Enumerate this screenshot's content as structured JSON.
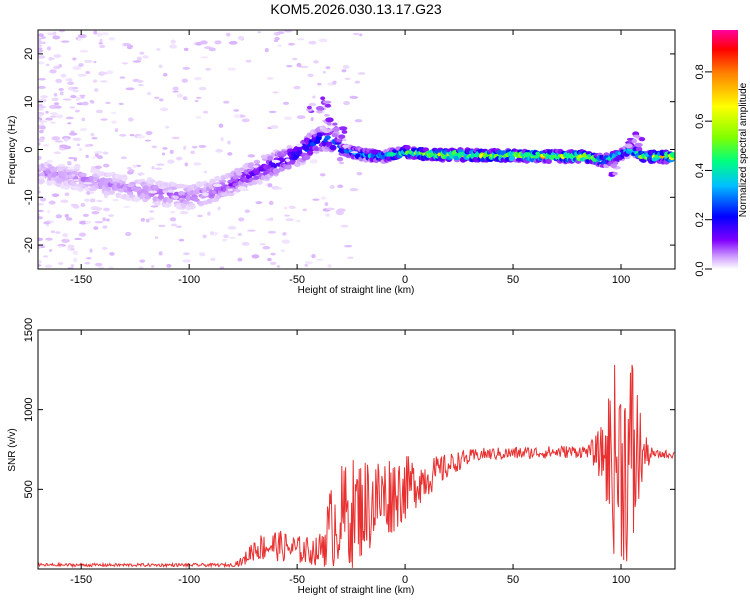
{
  "title": "KOM5.2026.030.13.17.G23",
  "chart_data": [
    {
      "type": "heatmap",
      "name": "spectrogram",
      "xlabel": "Height of straight line (km)",
      "ylabel": "Frequency (Hz)",
      "xlim": [
        -170,
        125
      ],
      "ylim": [
        -25,
        25
      ],
      "xticks": [
        -150,
        -100,
        -50,
        0,
        50,
        100
      ],
      "yticks": [
        -20,
        -10,
        0,
        10,
        20
      ],
      "colorbar": {
        "label": "Normalized spectral amplitude",
        "range": [
          0,
          0.97
        ],
        "ticks": [
          0.0,
          0.2,
          0.4,
          0.6,
          0.8
        ],
        "colors": [
          "#ffffff",
          "#d0a0ff",
          "#8000ff",
          "#0000ff",
          "#00c0ff",
          "#00ff80",
          "#80ff00",
          "#ffff00",
          "#ff8000",
          "#ff0000",
          "#ff00a0"
        ]
      },
      "ridge": [
        {
          "x": -165,
          "f": -5,
          "a": 0.12
        },
        {
          "x": -150,
          "f": -6,
          "a": 0.12
        },
        {
          "x": -130,
          "f": -8,
          "a": 0.12
        },
        {
          "x": -115,
          "f": -9,
          "a": 0.15
        },
        {
          "x": -100,
          "f": -10,
          "a": 0.15
        },
        {
          "x": -90,
          "f": -9,
          "a": 0.15
        },
        {
          "x": -80,
          "f": -7,
          "a": 0.2
        },
        {
          "x": -70,
          "f": -5,
          "a": 0.22
        },
        {
          "x": -60,
          "f": -3,
          "a": 0.25
        },
        {
          "x": -50,
          "f": -1,
          "a": 0.3
        },
        {
          "x": -40,
          "f": 2,
          "a": 0.35
        },
        {
          "x": -35,
          "f": 2.5,
          "a": 0.35
        },
        {
          "x": -30,
          "f": 0,
          "a": 0.4
        },
        {
          "x": -20,
          "f": -1,
          "a": 0.45
        },
        {
          "x": -10,
          "f": -1.5,
          "a": 0.45
        },
        {
          "x": 0,
          "f": -0.5,
          "a": 0.55
        },
        {
          "x": 10,
          "f": -1,
          "a": 0.65
        },
        {
          "x": 30,
          "f": -1.2,
          "a": 0.7
        },
        {
          "x": 50,
          "f": -1.3,
          "a": 0.7
        },
        {
          "x": 70,
          "f": -1.4,
          "a": 0.72
        },
        {
          "x": 85,
          "f": -1.5,
          "a": 0.7
        },
        {
          "x": 92,
          "f": -2.5,
          "a": 0.5
        },
        {
          "x": 100,
          "f": -1,
          "a": 0.45
        },
        {
          "x": 105,
          "f": 0,
          "a": 0.45
        },
        {
          "x": 110,
          "f": -1.5,
          "a": 0.6
        },
        {
          "x": 125,
          "f": -1.5,
          "a": 0.75
        }
      ]
    },
    {
      "type": "line",
      "name": "snr",
      "xlabel": "Height of straight line (km)",
      "ylabel": "SNR (v/v)",
      "xlim": [
        -170,
        125
      ],
      "ylim": [
        0,
        1500
      ],
      "xticks": [
        -150,
        -100,
        -50,
        0,
        50,
        100
      ],
      "yticks": [
        500,
        1000,
        1500
      ],
      "color": "#e83030",
      "envelope": [
        {
          "x": -170,
          "mean": 25,
          "spread": 10
        },
        {
          "x": -80,
          "mean": 25,
          "spread": 10
        },
        {
          "x": -75,
          "mean": 50,
          "spread": 30
        },
        {
          "x": -70,
          "mean": 130,
          "spread": 80
        },
        {
          "x": -60,
          "mean": 150,
          "spread": 100
        },
        {
          "x": -50,
          "mean": 120,
          "spread": 90
        },
        {
          "x": -40,
          "mean": 110,
          "spread": 90
        },
        {
          "x": -35,
          "mean": 250,
          "spread": 250
        },
        {
          "x": -30,
          "mean": 330,
          "spread": 320
        },
        {
          "x": -25,
          "mean": 350,
          "spread": 350
        },
        {
          "x": -15,
          "mean": 420,
          "spread": 300
        },
        {
          "x": -5,
          "mean": 480,
          "spread": 250
        },
        {
          "x": 5,
          "mean": 540,
          "spread": 160
        },
        {
          "x": 15,
          "mean": 610,
          "spread": 100
        },
        {
          "x": 25,
          "mean": 680,
          "spread": 60
        },
        {
          "x": 35,
          "mean": 720,
          "spread": 40
        },
        {
          "x": 60,
          "mean": 730,
          "spread": 40
        },
        {
          "x": 85,
          "mean": 740,
          "spread": 40
        },
        {
          "x": 92,
          "mean": 720,
          "spread": 200
        },
        {
          "x": 96,
          "mean": 700,
          "spread": 600
        },
        {
          "x": 103,
          "mean": 650,
          "spread": 650
        },
        {
          "x": 106,
          "mean": 700,
          "spread": 750
        },
        {
          "x": 110,
          "mean": 720,
          "spread": 150
        },
        {
          "x": 115,
          "mean": 720,
          "spread": 25
        },
        {
          "x": 125,
          "mean": 720,
          "spread": 25
        }
      ]
    }
  ]
}
